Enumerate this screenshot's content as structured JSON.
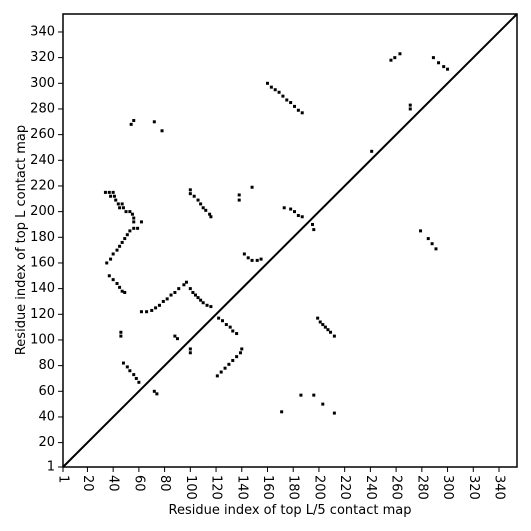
{
  "chart_data": {
    "type": "scatter",
    "x_label": "Residue index of top L/5 contact map",
    "y_label": "Residue index of top L contact map",
    "xlim": [
      1,
      354
    ],
    "ylim": [
      1,
      354
    ],
    "xticks": [
      1,
      20,
      40,
      60,
      80,
      100,
      120,
      140,
      160,
      180,
      200,
      220,
      240,
      260,
      280,
      300,
      320,
      340
    ],
    "yticks": [
      1,
      20,
      40,
      60,
      80,
      100,
      120,
      140,
      160,
      180,
      200,
      220,
      240,
      260,
      280,
      300,
      320,
      340
    ],
    "diagonal": true,
    "color": "#000000",
    "x": [
      34,
      37,
      40,
      38,
      41,
      42,
      44,
      47,
      45,
      48,
      50,
      53,
      55,
      56,
      56,
      62,
      56,
      59,
      35,
      38,
      40,
      43,
      45,
      47,
      49,
      51,
      53,
      37,
      40,
      43,
      45,
      47,
      49,
      46,
      46,
      48,
      51,
      53,
      56,
      58,
      60,
      54,
      56,
      72,
      78,
      62,
      66,
      70,
      73,
      76,
      79,
      82,
      85,
      88,
      91,
      95,
      97,
      88,
      90,
      72,
      74,
      100,
      100,
      103,
      106,
      108,
      110,
      112,
      115,
      116,
      100,
      102,
      104,
      106,
      108,
      110,
      113,
      116,
      100,
      100,
      122,
      125,
      128,
      131,
      133,
      136,
      121,
      124,
      127,
      130,
      133,
      136,
      139,
      140,
      138,
      138,
      148,
      142,
      145,
      148,
      152,
      155,
      160,
      163,
      166,
      169,
      172,
      175,
      178,
      181,
      184,
      187,
      173,
      178,
      181,
      184,
      187,
      195,
      196,
      171,
      186,
      196,
      203,
      212,
      199,
      201,
      203,
      205,
      207,
      209,
      212,
      241,
      256,
      259,
      263,
      271,
      271,
      279,
      285,
      288,
      291,
      289,
      293,
      297,
      300
    ],
    "y": [
      215,
      215,
      215,
      212,
      212,
      209,
      206,
      206,
      203,
      203,
      200,
      200,
      198,
      195,
      192,
      192,
      187,
      187,
      160,
      163,
      167,
      170,
      173,
      176,
      179,
      182,
      185,
      150,
      147,
      144,
      141,
      138,
      137,
      106,
      103,
      82,
      79,
      76,
      73,
      70,
      67,
      268,
      271,
      270,
      263,
      122,
      122,
      123,
      125,
      127,
      130,
      132,
      135,
      137,
      140,
      143,
      145,
      103,
      101,
      60,
      58,
      217,
      214,
      212,
      209,
      206,
      203,
      201,
      198,
      196,
      140,
      137,
      135,
      133,
      131,
      129,
      127,
      126,
      93,
      90,
      117,
      115,
      112,
      110,
      107,
      105,
      72,
      75,
      78,
      81,
      84,
      87,
      90,
      93,
      213,
      209,
      219,
      167,
      164,
      162,
      162,
      163,
      300,
      297,
      295,
      293,
      290,
      287,
      285,
      282,
      279,
      277,
      203,
      202,
      200,
      197,
      196,
      190,
      186,
      44,
      57,
      57,
      50,
      43,
      117,
      114,
      112,
      110,
      108,
      106,
      103,
      247,
      318,
      320,
      323,
      283,
      280,
      185,
      179,
      175,
      171,
      320,
      316,
      313,
      311
    ]
  }
}
